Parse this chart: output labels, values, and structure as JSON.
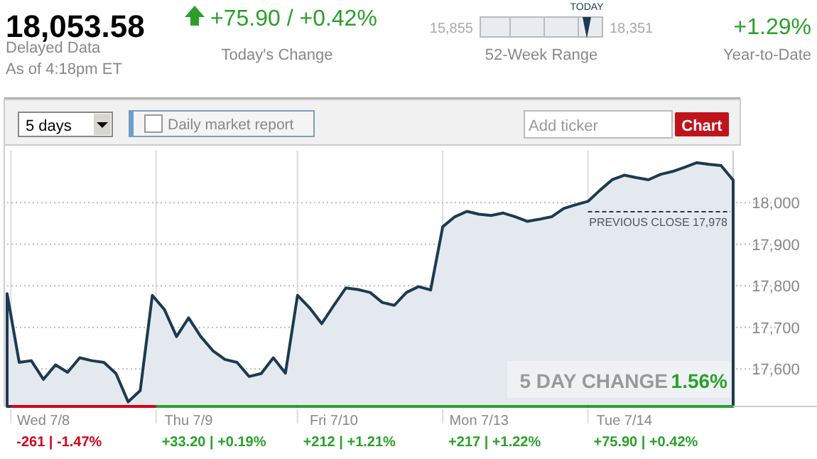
{
  "chart_data": {
    "type": "area",
    "title": "18,053.58",
    "annotations": [
      "Delayed Data",
      "As of 4:18pm ET",
      "+75.90 / +0.42%",
      "Today's Change",
      "15,855",
      "18,351",
      "TODAY",
      "52-Week Range",
      "+1.29%",
      "Year-to-Date",
      "5 days",
      "Daily market report",
      "Add ticker",
      "Chart",
      "5 DAY CHANGE",
      "1.56%",
      "-261 | -1.47%",
      "+33.20 | +0.19%",
      "+212 | +1.21%",
      "+217 | +1.22%",
      "+75.90 | +0.42%"
    ],
    "categories": [
      null,
      null,
      null,
      "Wed 7/8",
      null,
      null,
      null,
      null,
      null,
      null,
      null,
      null,
      null,
      null,
      null,
      "Thu 7/9",
      null,
      null,
      null,
      null,
      null,
      null,
      null,
      null,
      null,
      null,
      null,
      "Fri 7/10",
      null,
      null,
      null,
      null,
      null,
      null,
      null,
      null,
      null,
      null,
      null,
      "Mon 7/13",
      null,
      null,
      null,
      null,
      null,
      null,
      null,
      null,
      null,
      null,
      null,
      "Tue 7/14",
      null,
      null,
      null,
      null,
      null,
      null,
      null,
      null,
      null
    ],
    "series": [
      {
        "color": "#1c3a50",
        "values": [
          17781,
          17616,
          17620,
          17575,
          17610,
          17592,
          17627,
          17620,
          17616,
          17589,
          17521,
          17548,
          17777,
          17743,
          17678,
          17723,
          17678,
          17644,
          17623,
          17616,
          17582,
          17589,
          17627,
          17590,
          17777,
          17747,
          17709,
          17753,
          17795,
          17791,
          17784,
          17760,
          17753,
          17784,
          17798,
          17790,
          17942,
          17966,
          17979,
          17972,
          17969,
          17975,
          17966,
          17955,
          17960,
          17966,
          17986,
          17995,
          18003,
          18030,
          18055,
          18066,
          18060,
          18055,
          18068,
          18075,
          18085,
          18096,
          18092,
          18089,
          18054
        ]
      }
    ],
    "ylim": [
      17510,
      18125
    ],
    "yticks": [
      {
        "value": 17600,
        "label": "17,600"
      },
      {
        "value": 17700,
        "label": "17,700"
      },
      {
        "value": 17800,
        "label": "17,800"
      },
      {
        "value": 17900,
        "label": "17,900"
      },
      {
        "value": 18000,
        "label": "18,000"
      }
    ],
    "ref_lines": [
      {
        "axis": "y",
        "value": 17978,
        "label": "PREVIOUS CLOSE 17,978",
        "color": "#333333",
        "line_style": "dashed"
      }
    ],
    "grid": true
  }
}
